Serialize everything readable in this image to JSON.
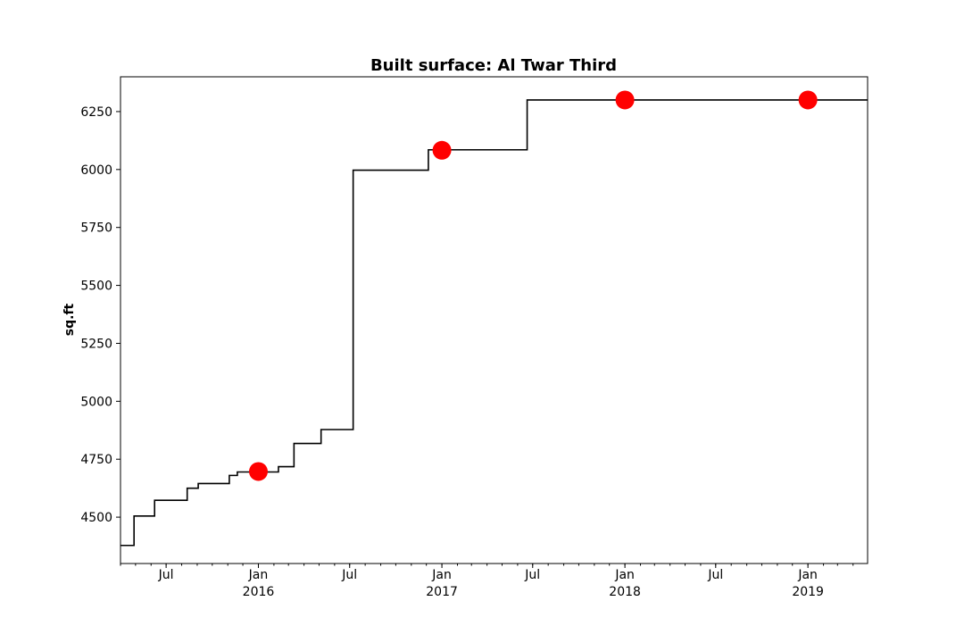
{
  "chart_data": {
    "type": "line",
    "title": "Built surface: Al Twar Third",
    "xlabel": "",
    "ylabel": "sq.ft",
    "x_range": [
      "2015-04-01",
      "2019-04-30"
    ],
    "ylim": [
      4300,
      6400
    ],
    "y_ticks": [
      4500,
      4750,
      5000,
      5250,
      5500,
      5750,
      6000,
      6250
    ],
    "x_ticks": [
      {
        "date": "2015-07-01",
        "label": "Jul",
        "sublabel": ""
      },
      {
        "date": "2016-01-01",
        "label": "Jan",
        "sublabel": "2016"
      },
      {
        "date": "2016-07-01",
        "label": "Jul",
        "sublabel": ""
      },
      {
        "date": "2017-01-01",
        "label": "Jan",
        "sublabel": "2017"
      },
      {
        "date": "2017-07-01",
        "label": "Jul",
        "sublabel": ""
      },
      {
        "date": "2018-01-01",
        "label": "Jan",
        "sublabel": "2018"
      },
      {
        "date": "2018-07-01",
        "label": "Jul",
        "sublabel": ""
      },
      {
        "date": "2019-01-01",
        "label": "Jan",
        "sublabel": "2019"
      }
    ],
    "grid": false,
    "series": [
      {
        "kind": "step",
        "color": "#000000",
        "points": [
          {
            "x": "2015-04-01",
            "y": 4378
          },
          {
            "x": "2015-04-28",
            "y": 4505
          },
          {
            "x": "2015-06-08",
            "y": 4573
          },
          {
            "x": "2015-08-12",
            "y": 4625
          },
          {
            "x": "2015-09-03",
            "y": 4645
          },
          {
            "x": "2015-11-04",
            "y": 4680
          },
          {
            "x": "2015-11-20",
            "y": 4695
          },
          {
            "x": "2016-02-10",
            "y": 4718
          },
          {
            "x": "2016-03-12",
            "y": 4818
          },
          {
            "x": "2016-05-05",
            "y": 4878
          },
          {
            "x": "2016-07-08",
            "y": 5997
          },
          {
            "x": "2016-12-05",
            "y": 6085
          },
          {
            "x": "2017-06-20",
            "y": 6300
          },
          {
            "x": "2019-04-30",
            "y": 6300
          }
        ]
      },
      {
        "kind": "scatter",
        "color": "#ff0000",
        "points": [
          {
            "x": "2016-01-01",
            "y": 4697
          },
          {
            "x": "2017-01-01",
            "y": 6083
          },
          {
            "x": "2018-01-01",
            "y": 6300
          },
          {
            "x": "2019-01-01",
            "y": 6300
          }
        ]
      }
    ]
  }
}
